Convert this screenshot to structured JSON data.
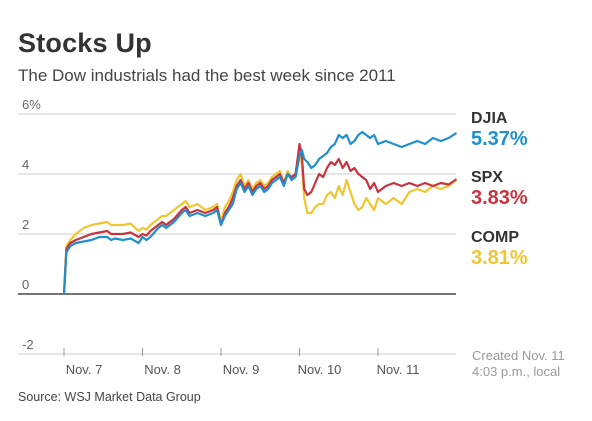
{
  "header": {
    "title": "Stocks Up",
    "subtitle": "The Dow industrials had the best week since 2011"
  },
  "source": "Source: WSJ Market Data Group",
  "created": {
    "line1": "Created Nov. 11",
    "line2": "4:03 p.m., local"
  },
  "colors": {
    "djia": "#1f8fce",
    "spx": "#c9323f",
    "comp": "#f0c630",
    "grid": "#cccccc",
    "axis": "#222222",
    "text": "#333333"
  },
  "chart_data": {
    "type": "line",
    "title": "Stocks Up",
    "subtitle": "The Dow industrials had the best week since 2011",
    "xlabel": "",
    "ylabel": "",
    "ylim": [
      -2,
      6
    ],
    "yticks": [
      "6%",
      "4",
      "2",
      "0",
      "-2"
    ],
    "yticks_values": [
      6,
      4,
      2,
      0,
      -2
    ],
    "xticks": [
      "Nov. 7",
      "Nov. 8",
      "Nov. 9",
      "Nov. 10",
      "Nov. 11"
    ],
    "xticks_values": [
      0,
      1,
      2,
      3,
      4
    ],
    "xlim": [
      0,
      5
    ],
    "grid": true,
    "legend_placement": "right",
    "series": [
      {
        "name": "DJIA",
        "last_label": "5.37%",
        "color": "#1f8fce",
        "x": [
          0,
          0.03,
          0.08,
          0.15,
          0.25,
          0.35,
          0.45,
          0.55,
          0.6,
          0.65,
          0.75,
          0.85,
          0.95,
          1.0,
          1.05,
          1.1,
          1.2,
          1.25,
          1.3,
          1.4,
          1.5,
          1.55,
          1.6,
          1.7,
          1.8,
          1.9,
          1.95,
          2.0,
          2.05,
          2.1,
          2.15,
          2.2,
          2.25,
          2.3,
          2.35,
          2.4,
          2.45,
          2.5,
          2.55,
          2.6,
          2.65,
          2.7,
          2.75,
          2.8,
          2.85,
          2.9,
          2.95,
          3.0,
          3.03,
          3.06,
          3.1,
          3.15,
          3.2,
          3.25,
          3.3,
          3.35,
          3.4,
          3.45,
          3.5,
          3.55,
          3.6,
          3.65,
          3.7,
          3.75,
          3.8,
          3.85,
          3.9,
          3.95,
          4.0,
          4.1,
          4.2,
          4.3,
          4.4,
          4.5,
          4.6,
          4.7,
          4.8,
          4.9,
          5.0
        ],
        "y": [
          0,
          1.4,
          1.6,
          1.7,
          1.75,
          1.8,
          1.9,
          1.9,
          1.8,
          1.85,
          1.8,
          1.85,
          1.7,
          1.9,
          1.8,
          1.9,
          2.2,
          2.3,
          2.2,
          2.4,
          2.7,
          2.8,
          2.6,
          2.7,
          2.6,
          2.7,
          2.8,
          2.3,
          2.6,
          2.8,
          3.0,
          3.5,
          3.7,
          3.4,
          3.6,
          3.3,
          3.5,
          3.6,
          3.4,
          3.5,
          3.7,
          3.8,
          3.9,
          3.6,
          4.0,
          3.8,
          3.9,
          4.6,
          4.8,
          4.5,
          4.4,
          4.2,
          4.3,
          4.5,
          4.6,
          4.7,
          4.9,
          5.0,
          5.3,
          5.2,
          5.3,
          5.0,
          5.1,
          5.3,
          5.4,
          5.3,
          5.2,
          5.3,
          5.0,
          5.1,
          5.0,
          4.9,
          5.0,
          5.1,
          5.0,
          5.2,
          5.1,
          5.2,
          5.37
        ]
      },
      {
        "name": "SPX",
        "last_label": "3.83%",
        "color": "#c9323f",
        "x": [
          0,
          0.03,
          0.08,
          0.15,
          0.25,
          0.35,
          0.45,
          0.55,
          0.6,
          0.65,
          0.75,
          0.85,
          0.95,
          1.0,
          1.05,
          1.1,
          1.2,
          1.25,
          1.3,
          1.4,
          1.5,
          1.55,
          1.6,
          1.7,
          1.8,
          1.9,
          1.95,
          2.0,
          2.05,
          2.1,
          2.15,
          2.2,
          2.25,
          2.3,
          2.35,
          2.4,
          2.45,
          2.5,
          2.55,
          2.6,
          2.65,
          2.7,
          2.75,
          2.8,
          2.85,
          2.9,
          2.95,
          3.0,
          3.03,
          3.06,
          3.1,
          3.15,
          3.2,
          3.25,
          3.3,
          3.35,
          3.4,
          3.45,
          3.5,
          3.55,
          3.6,
          3.65,
          3.7,
          3.75,
          3.8,
          3.85,
          3.9,
          3.95,
          4.0,
          4.1,
          4.2,
          4.3,
          4.4,
          4.5,
          4.6,
          4.7,
          4.8,
          4.9,
          5.0
        ],
        "y": [
          0,
          1.5,
          1.7,
          1.8,
          1.9,
          2.0,
          2.05,
          2.1,
          2.0,
          2.0,
          2.0,
          2.05,
          1.9,
          2.0,
          1.95,
          2.1,
          2.3,
          2.4,
          2.3,
          2.5,
          2.8,
          2.9,
          2.7,
          2.8,
          2.7,
          2.8,
          2.9,
          2.3,
          2.7,
          2.9,
          3.2,
          3.6,
          3.8,
          3.5,
          3.7,
          3.4,
          3.6,
          3.7,
          3.5,
          3.6,
          3.8,
          3.9,
          4.0,
          3.7,
          4.0,
          3.9,
          4.0,
          5.0,
          4.6,
          3.5,
          3.3,
          3.4,
          3.7,
          4.0,
          3.9,
          4.2,
          4.4,
          4.3,
          4.5,
          4.2,
          4.4,
          4.1,
          4.2,
          4.0,
          3.9,
          3.8,
          3.5,
          3.7,
          3.4,
          3.6,
          3.7,
          3.6,
          3.7,
          3.6,
          3.7,
          3.6,
          3.7,
          3.65,
          3.83
        ]
      },
      {
        "name": "COMP",
        "last_label": "3.81%",
        "color": "#f0c630",
        "x": [
          0,
          0.03,
          0.08,
          0.15,
          0.25,
          0.35,
          0.45,
          0.55,
          0.6,
          0.65,
          0.75,
          0.85,
          0.95,
          1.0,
          1.05,
          1.1,
          1.2,
          1.25,
          1.3,
          1.4,
          1.5,
          1.55,
          1.6,
          1.7,
          1.8,
          1.9,
          1.95,
          2.0,
          2.05,
          2.1,
          2.15,
          2.2,
          2.25,
          2.3,
          2.35,
          2.4,
          2.45,
          2.5,
          2.55,
          2.6,
          2.65,
          2.7,
          2.75,
          2.8,
          2.85,
          2.9,
          2.95,
          3.0,
          3.03,
          3.06,
          3.1,
          3.15,
          3.2,
          3.25,
          3.3,
          3.35,
          3.4,
          3.45,
          3.5,
          3.55,
          3.6,
          3.65,
          3.7,
          3.75,
          3.8,
          3.85,
          3.9,
          3.95,
          4.0,
          4.1,
          4.2,
          4.3,
          4.4,
          4.5,
          4.6,
          4.7,
          4.8,
          4.9,
          5.0
        ],
        "y": [
          0,
          1.6,
          1.8,
          2.0,
          2.2,
          2.3,
          2.35,
          2.4,
          2.3,
          2.3,
          2.3,
          2.35,
          2.1,
          2.2,
          2.15,
          2.3,
          2.5,
          2.6,
          2.6,
          2.8,
          3.0,
          3.1,
          2.9,
          3.0,
          2.8,
          2.9,
          3.0,
          2.4,
          2.9,
          3.1,
          3.4,
          3.8,
          4.0,
          3.6,
          3.8,
          3.5,
          3.7,
          3.8,
          3.6,
          3.7,
          3.9,
          4.0,
          4.1,
          3.7,
          4.1,
          3.8,
          4.0,
          4.8,
          4.3,
          3.2,
          2.7,
          2.7,
          2.9,
          3.0,
          3.0,
          3.3,
          3.4,
          3.2,
          3.6,
          3.3,
          3.8,
          3.4,
          3.0,
          2.8,
          2.9,
          3.2,
          3.0,
          2.8,
          3.2,
          3.0,
          3.2,
          3.0,
          3.4,
          3.5,
          3.4,
          3.6,
          3.5,
          3.6,
          3.81
        ]
      }
    ]
  }
}
